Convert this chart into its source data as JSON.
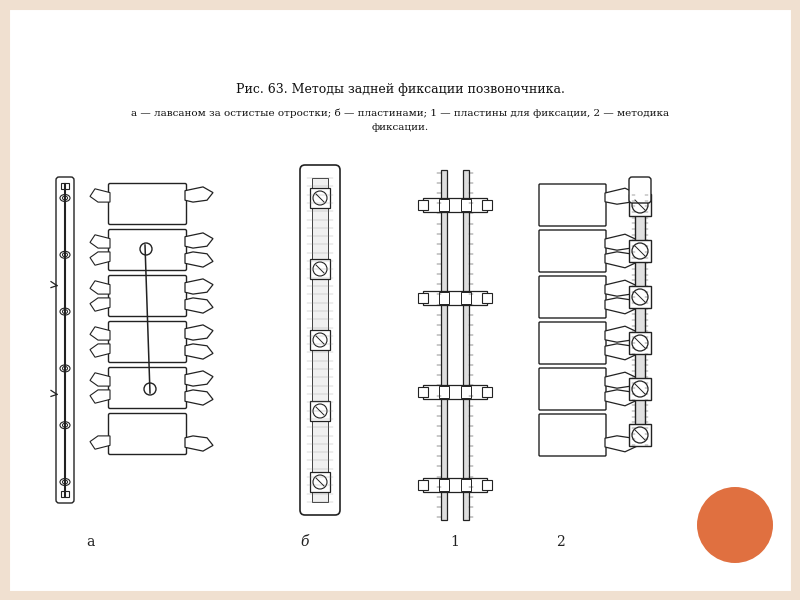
{
  "bg_color": "#f0e0d0",
  "panel_bg": "#ffffff",
  "title_line1": "Рис. 63. Методы задней фиксации позвоночника.",
  "title_line2": "а — лавсаном за остистые отростки; б — пластинами; 1 — пластины для фиксации, 2 — методика",
  "title_line3": "фиксации.",
  "label_a": "а",
  "label_b": "б",
  "label_1": "1",
  "label_2": "2",
  "circle_color": "#e07040",
  "title_fontsize": 9,
  "caption_fontsize": 7.5,
  "lc": "#222222"
}
